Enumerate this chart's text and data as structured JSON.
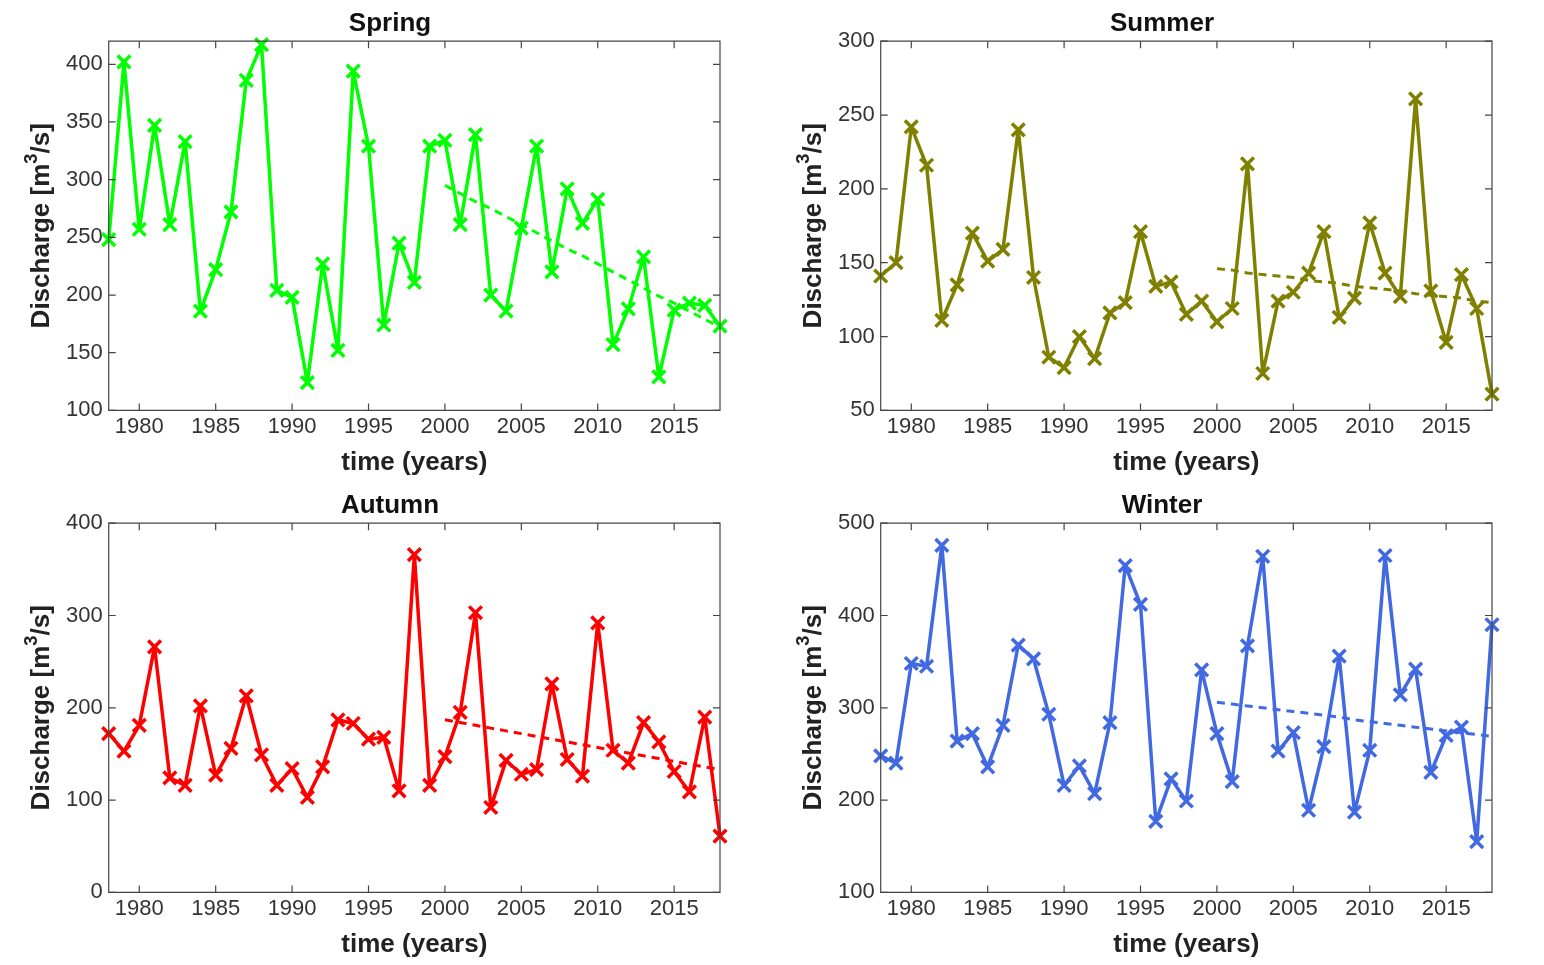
{
  "chart_data": [
    {
      "type": "line",
      "title": "Spring",
      "xlabel": "time (years)",
      "ylabel": "Discharge [m$^{3}$/s]",
      "x": [
        1978,
        1979,
        1980,
        1981,
        1982,
        1983,
        1984,
        1985,
        1986,
        1987,
        1988,
        1989,
        1990,
        1991,
        1992,
        1993,
        1994,
        1995,
        1996,
        1997,
        1998,
        1999,
        2000,
        2001,
        2002,
        2003,
        2004,
        2005,
        2006,
        2007,
        2008,
        2009,
        2010,
        2011,
        2012,
        2013,
        2014,
        2015,
        2016,
        2017,
        2018
      ],
      "xlim": [
        1978,
        2018
      ],
      "xticks": [
        1980,
        1985,
        1990,
        1995,
        2000,
        2005,
        2010,
        2015
      ],
      "ylim": [
        100,
        420
      ],
      "yticks": [
        100,
        150,
        200,
        250,
        300,
        350,
        400
      ],
      "grid": false,
      "legend": false,
      "marker": "cross",
      "series": [
        {
          "color": "#00ff00",
          "line_style": "solid",
          "values": [
            248,
            402,
            257,
            347,
            261,
            333,
            186,
            222,
            272,
            386,
            417,
            204,
            198,
            124,
            227,
            152,
            394,
            329,
            174,
            245,
            211,
            329,
            334,
            261,
            339,
            200,
            186,
            258,
            329,
            220,
            292,
            262,
            283,
            157,
            188,
            233,
            129,
            187,
            193,
            191,
            173
          ]
        },
        {
          "type": "line",
          "color": "#00ff00",
          "line_style": "dashed",
          "marker": "none",
          "values": [
            null,
            null,
            null,
            null,
            null,
            null,
            null,
            null,
            null,
            null,
            null,
            null,
            null,
            null,
            null,
            null,
            null,
            null,
            null,
            null,
            null,
            null,
            295,
            288,
            281,
            275,
            268,
            261,
            254,
            247,
            240,
            234,
            227,
            220,
            213,
            206,
            199,
            193,
            186,
            179,
            172
          ]
        }
      ]
    },
    {
      "type": "line",
      "title": "Summer",
      "xlabel": "time (years)",
      "ylabel": "Discharge [m$^{3}$/s]",
      "x": [
        1978,
        1979,
        1980,
        1981,
        1982,
        1983,
        1984,
        1985,
        1986,
        1987,
        1988,
        1989,
        1990,
        1991,
        1992,
        1993,
        1994,
        1995,
        1996,
        1997,
        1998,
        1999,
        2000,
        2001,
        2002,
        2003,
        2004,
        2005,
        2006,
        2007,
        2008,
        2009,
        2010,
        2011,
        2012,
        2013,
        2014,
        2015,
        2016,
        2017,
        2018
      ],
      "xlim": [
        1978,
        2018
      ],
      "xticks": [
        1980,
        1985,
        1990,
        1995,
        2000,
        2005,
        2010,
        2015
      ],
      "ylim": [
        50,
        300
      ],
      "yticks": [
        50,
        100,
        150,
        200,
        250,
        300
      ],
      "grid": false,
      "legend": false,
      "marker": "cross",
      "series": [
        {
          "color": "#808000",
          "line_style": "solid",
          "values": [
            141,
            150,
            242,
            216,
            111,
            135,
            170,
            151,
            159,
            240,
            140,
            86,
            79,
            100,
            85,
            116,
            123,
            171,
            134,
            137,
            115,
            124,
            110,
            119,
            217,
            75,
            124,
            130,
            143,
            171,
            113,
            126,
            177,
            143,
            127,
            261,
            131,
            96,
            142,
            119,
            61
          ]
        },
        {
          "type": "line",
          "color": "#808000",
          "line_style": "dashed",
          "marker": "none",
          "values": [
            null,
            null,
            null,
            null,
            null,
            null,
            null,
            null,
            null,
            null,
            null,
            null,
            null,
            null,
            null,
            null,
            null,
            null,
            null,
            null,
            null,
            null,
            146,
            145,
            143,
            142,
            141,
            140,
            138,
            137,
            136,
            134,
            133,
            132,
            131,
            129,
            128,
            127,
            126,
            124,
            123
          ]
        }
      ]
    },
    {
      "type": "line",
      "title": "Autumn",
      "xlabel": "time (years)",
      "ylabel": "Discharge [m$^{3}$/s]",
      "x": [
        1978,
        1979,
        1980,
        1981,
        1982,
        1983,
        1984,
        1985,
        1986,
        1987,
        1988,
        1989,
        1990,
        1991,
        1992,
        1993,
        1994,
        1995,
        1996,
        1997,
        1998,
        1999,
        2000,
        2001,
        2002,
        2003,
        2004,
        2005,
        2006,
        2007,
        2008,
        2009,
        2010,
        2011,
        2012,
        2013,
        2014,
        2015,
        2016,
        2017,
        2018
      ],
      "xlim": [
        1978,
        2018
      ],
      "xticks": [
        1980,
        1985,
        1990,
        1995,
        2000,
        2005,
        2010,
        2015
      ],
      "ylim": [
        0,
        400
      ],
      "yticks": [
        0,
        100,
        200,
        300,
        400
      ],
      "grid": false,
      "legend": false,
      "marker": "cross",
      "series": [
        {
          "color": "#ff0000",
          "line_style": "solid",
          "values": [
            172,
            153,
            181,
            266,
            124,
            116,
            202,
            127,
            156,
            213,
            149,
            116,
            134,
            103,
            136,
            187,
            183,
            166,
            168,
            110,
            366,
            116,
            147,
            195,
            303,
            92,
            143,
            128,
            133,
            226,
            144,
            126,
            292,
            154,
            140,
            184,
            163,
            131,
            109,
            190,
            61
          ]
        },
        {
          "type": "line",
          "color": "#ff0000",
          "line_style": "dashed",
          "marker": "none",
          "values": [
            null,
            null,
            null,
            null,
            null,
            null,
            null,
            null,
            null,
            null,
            null,
            null,
            null,
            null,
            null,
            null,
            null,
            null,
            null,
            null,
            null,
            null,
            187,
            184,
            181,
            178,
            175,
            172,
            169,
            166,
            163,
            160,
            157,
            154,
            151,
            148,
            145,
            142,
            139,
            136,
            133
          ]
        }
      ]
    },
    {
      "type": "line",
      "title": "Winter",
      "xlabel": "time (years)",
      "ylabel": "Discharge [m$^{3}$/s]",
      "x": [
        1978,
        1979,
        1980,
        1981,
        1982,
        1983,
        1984,
        1985,
        1986,
        1987,
        1988,
        1989,
        1990,
        1991,
        1992,
        1993,
        1994,
        1995,
        1996,
        1997,
        1998,
        1999,
        2000,
        2001,
        2002,
        2003,
        2004,
        2005,
        2006,
        2007,
        2008,
        2009,
        2010,
        2011,
        2012,
        2013,
        2014,
        2015,
        2016,
        2017,
        2018
      ],
      "xlim": [
        1978,
        2018
      ],
      "xticks": [
        1980,
        1985,
        1990,
        1995,
        2000,
        2005,
        2010,
        2015
      ],
      "ylim": [
        100,
        500
      ],
      "yticks": [
        100,
        200,
        300,
        400,
        500
      ],
      "grid": false,
      "legend": false,
      "marker": "cross",
      "series": [
        {
          "color": "#4169e1",
          "line_style": "solid",
          "values": [
            248,
            240,
            348,
            345,
            476,
            264,
            272,
            236,
            281,
            368,
            353,
            293,
            216,
            237,
            207,
            284,
            454,
            412,
            177,
            223,
            199,
            341,
            272,
            220,
            367,
            464,
            253,
            273,
            189,
            258,
            356,
            187,
            254,
            465,
            314,
            342,
            230,
            270,
            279,
            155,
            390
          ]
        },
        {
          "type": "line",
          "color": "#4169e1",
          "line_style": "dashed",
          "marker": "none",
          "values": [
            null,
            null,
            null,
            null,
            null,
            null,
            null,
            null,
            null,
            null,
            null,
            null,
            null,
            null,
            null,
            null,
            null,
            null,
            null,
            null,
            null,
            null,
            306,
            304,
            302,
            300,
            298,
            296,
            294,
            292,
            290,
            287,
            285,
            283,
            281,
            279,
            277,
            275,
            273,
            271,
            269
          ]
        }
      ]
    }
  ]
}
